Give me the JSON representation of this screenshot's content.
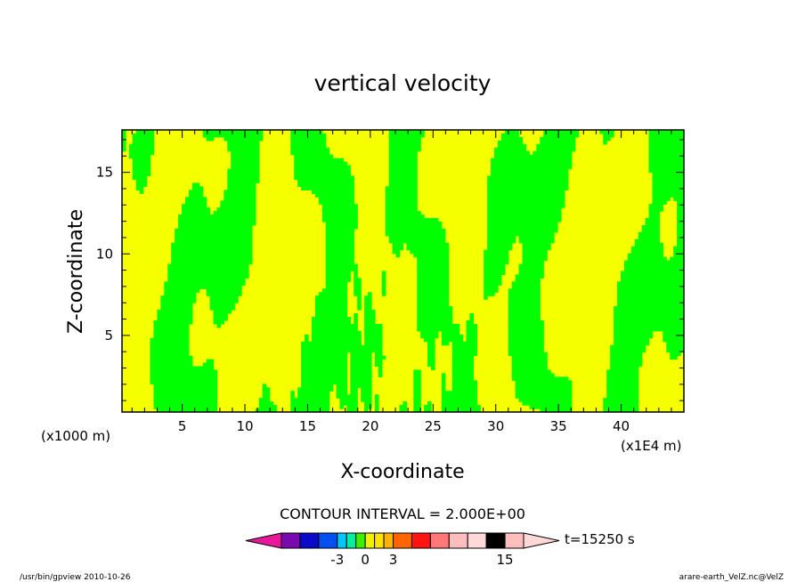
{
  "chart_data": {
    "type": "heatmap",
    "title": "vertical velocity",
    "xlabel": "X-coordinate",
    "ylabel": "Z-coordinate",
    "x_unit": "(x1E4 m)",
    "y_unit": "(x1000 m)",
    "xlim": [
      0.2,
      45
    ],
    "ylim": [
      0.3,
      17.6
    ],
    "x_ticks": [
      5,
      10,
      15,
      20,
      25,
      30,
      35,
      40
    ],
    "y_ticks": [
      5,
      10,
      15
    ],
    "contour_interval_label": "CONTOUR INTERVAL = 2.000E+00",
    "time_label": "t=15250 s",
    "colorbar": {
      "tick_labels": [
        "-3",
        "0",
        "3",
        "15"
      ],
      "levels": [
        -9,
        -7,
        -5,
        -3,
        -2,
        -1,
        0,
        1,
        2,
        3,
        5,
        7,
        9,
        11,
        13,
        15,
        17
      ],
      "colors": [
        "#e8189a",
        "#7a0ab0",
        "#0a0ac8",
        "#0050f0",
        "#00c8ff",
        "#00f0a0",
        "#3cf000",
        "#f0f000",
        "#ffe000",
        "#ffb400",
        "#ff6400",
        "#ff1414",
        "#ff7878",
        "#ffbebe",
        "#ffd8d8"
      ]
    },
    "fields": {
      "positive_color": "#f5ff00",
      "negative_color": "#00ff00",
      "grid": false
    }
  },
  "footer": {
    "left": "/usr/bin/gpview   2010-10-26",
    "right": "arare-earth_VelZ.nc@VelZ"
  }
}
